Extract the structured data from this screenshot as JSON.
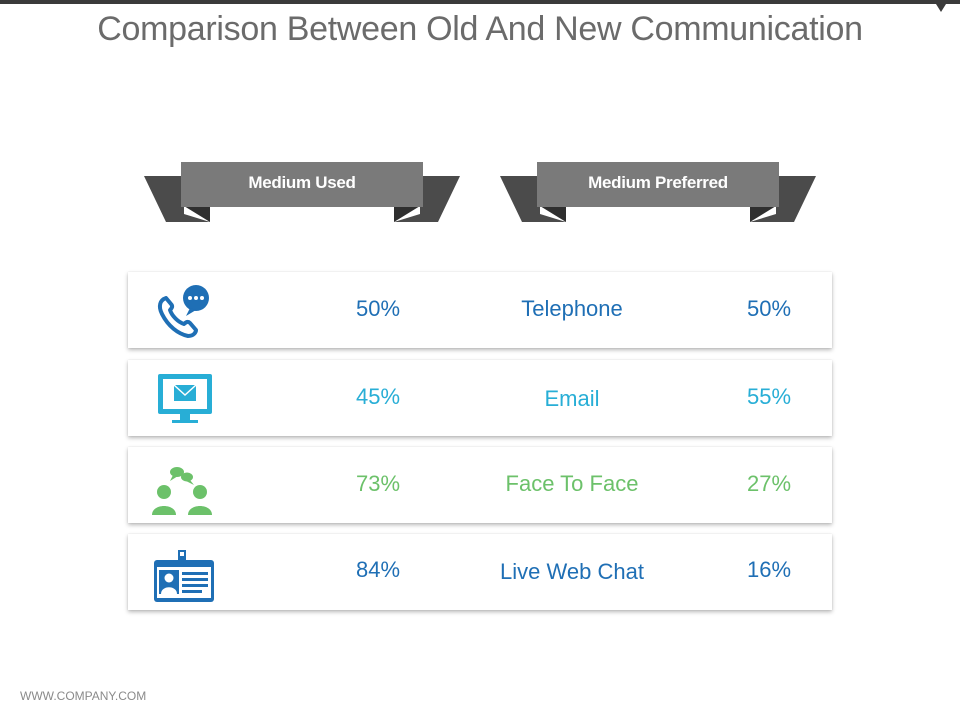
{
  "title": "Comparison Between Old And New Communication",
  "ribbons": {
    "left": "Medium Used",
    "right": "Medium Preferred"
  },
  "rows": [
    {
      "icon": "phone-chat-icon",
      "color": "#1f6fb5",
      "used": "50%",
      "medium": "Telephone",
      "preferred": "50%"
    },
    {
      "icon": "monitor-mail-icon",
      "color": "#28aed6",
      "used": "45%",
      "medium": "Email",
      "preferred": "55%"
    },
    {
      "icon": "people-talk-icon",
      "color": "#6cc16a",
      "used": "73%",
      "medium": "Face To Face",
      "preferred": "27%"
    },
    {
      "icon": "id-card-icon",
      "color": "#1f6fb5",
      "used": "84%",
      "medium": "Live Web Chat",
      "preferred": "16%"
    }
  ],
  "colors": {
    "ribbon_front": "#7a7a7a",
    "ribbon_back": "#4b4b4b",
    "title": "#6b6b6b"
  },
  "footer": "WWW.COMPANY.COM"
}
